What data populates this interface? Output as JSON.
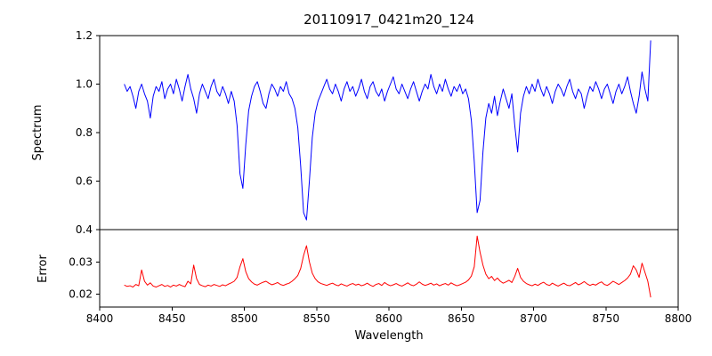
{
  "chart_data": {
    "type": "line",
    "title": "20110917_0421m20_124",
    "xlabel": "Wavelength",
    "xlim": [
      8400,
      8800
    ],
    "xticks": [
      "8400",
      "8450",
      "8500",
      "8550",
      "8600",
      "8650",
      "8700",
      "8750",
      "8800"
    ],
    "x_start": 8417,
    "x_step": 2,
    "n_points": 183,
    "grid": false,
    "legend": "none",
    "panels": [
      {
        "ylabel": "Spectrum",
        "color": "#0000ff",
        "ylim": [
          0.4,
          1.2
        ],
        "yticks": [
          "0.4",
          "0.6",
          "0.8",
          "1.0",
          "1.2"
        ],
        "values": [
          1.0,
          0.97,
          0.99,
          0.95,
          0.9,
          0.97,
          1.0,
          0.96,
          0.93,
          0.86,
          0.95,
          0.99,
          0.97,
          1.01,
          0.94,
          0.98,
          1.0,
          0.96,
          1.02,
          0.98,
          0.93,
          0.99,
          1.04,
          0.98,
          0.94,
          0.88,
          0.96,
          1.0,
          0.97,
          0.94,
          0.99,
          1.02,
          0.97,
          0.95,
          0.99,
          0.96,
          0.92,
          0.97,
          0.93,
          0.83,
          0.63,
          0.57,
          0.75,
          0.89,
          0.95,
          0.99,
          1.01,
          0.97,
          0.92,
          0.9,
          0.96,
          1.0,
          0.98,
          0.95,
          0.99,
          0.97,
          1.01,
          0.96,
          0.94,
          0.9,
          0.82,
          0.66,
          0.47,
          0.44,
          0.6,
          0.78,
          0.88,
          0.93,
          0.96,
          0.99,
          1.02,
          0.98,
          0.96,
          1.0,
          0.97,
          0.93,
          0.98,
          1.01,
          0.97,
          0.99,
          0.95,
          0.98,
          1.02,
          0.97,
          0.94,
          0.99,
          1.01,
          0.97,
          0.95,
          0.98,
          0.93,
          0.97,
          1.0,
          1.03,
          0.98,
          0.96,
          1.0,
          0.97,
          0.94,
          0.98,
          1.01,
          0.97,
          0.93,
          0.97,
          1.0,
          0.98,
          1.04,
          0.99,
          0.96,
          1.0,
          0.97,
          1.02,
          0.98,
          0.95,
          0.99,
          0.97,
          1.0,
          0.96,
          0.98,
          0.94,
          0.85,
          0.68,
          0.47,
          0.52,
          0.72,
          0.86,
          0.92,
          0.88,
          0.95,
          0.87,
          0.93,
          0.98,
          0.94,
          0.9,
          0.96,
          0.83,
          0.72,
          0.88,
          0.95,
          0.99,
          0.96,
          1.0,
          0.97,
          1.02,
          0.98,
          0.95,
          0.99,
          0.96,
          0.92,
          0.97,
          1.0,
          0.98,
          0.95,
          0.99,
          1.02,
          0.97,
          0.94,
          0.98,
          0.96,
          0.9,
          0.95,
          0.99,
          0.97,
          1.01,
          0.98,
          0.94,
          0.98,
          1.0,
          0.96,
          0.92,
          0.97,
          1.0,
          0.96,
          0.99,
          1.03,
          0.97,
          0.92,
          0.88,
          0.95,
          1.05,
          0.98,
          0.93,
          1.18
        ]
      },
      {
        "ylabel": "Error",
        "color": "#ff0000",
        "ylim": [
          0.016,
          0.04
        ],
        "yticks": [
          "0.02",
          "0.03"
        ],
        "values": [
          0.0228,
          0.0224,
          0.0226,
          0.0222,
          0.023,
          0.0226,
          0.0275,
          0.024,
          0.0228,
          0.0235,
          0.0225,
          0.0222,
          0.0226,
          0.023,
          0.0224,
          0.0227,
          0.0222,
          0.0228,
          0.0225,
          0.023,
          0.0226,
          0.0223,
          0.024,
          0.0232,
          0.029,
          0.0248,
          0.023,
          0.0226,
          0.0223,
          0.0228,
          0.0225,
          0.023,
          0.0227,
          0.0224,
          0.0229,
          0.0226,
          0.0231,
          0.0235,
          0.024,
          0.0252,
          0.0285,
          0.031,
          0.027,
          0.0248,
          0.0238,
          0.0231,
          0.0228,
          0.0233,
          0.0237,
          0.024,
          0.0234,
          0.0229,
          0.0232,
          0.0236,
          0.023,
          0.0227,
          0.0231,
          0.0234,
          0.024,
          0.0248,
          0.0258,
          0.028,
          0.032,
          0.035,
          0.03,
          0.0265,
          0.0248,
          0.0238,
          0.0233,
          0.023,
          0.0227,
          0.0231,
          0.0234,
          0.0229,
          0.0226,
          0.0232,
          0.0228,
          0.0225,
          0.023,
          0.0233,
          0.0228,
          0.0231,
          0.0226,
          0.0229,
          0.0234,
          0.0228,
          0.0224,
          0.023,
          0.0233,
          0.0227,
          0.0236,
          0.023,
          0.0226,
          0.0229,
          0.0233,
          0.0228,
          0.0225,
          0.023,
          0.0235,
          0.0229,
          0.0226,
          0.0231,
          0.0238,
          0.0231,
          0.0227,
          0.023,
          0.0234,
          0.0228,
          0.0232,
          0.0226,
          0.023,
          0.0233,
          0.0228,
          0.0235,
          0.023,
          0.0226,
          0.0229,
          0.0233,
          0.0237,
          0.0244,
          0.0256,
          0.0285,
          0.038,
          0.033,
          0.029,
          0.0262,
          0.0248,
          0.0255,
          0.0242,
          0.025,
          0.024,
          0.0234,
          0.0238,
          0.0243,
          0.0236,
          0.0255,
          0.028,
          0.0252,
          0.024,
          0.0233,
          0.0229,
          0.0226,
          0.0231,
          0.0227,
          0.0233,
          0.0237,
          0.023,
          0.0227,
          0.0234,
          0.0229,
          0.0225,
          0.023,
          0.0234,
          0.0228,
          0.0226,
          0.0231,
          0.0236,
          0.0229,
          0.0233,
          0.0239,
          0.0232,
          0.0227,
          0.0231,
          0.0228,
          0.0234,
          0.0238,
          0.023,
          0.0227,
          0.0233,
          0.024,
          0.0235,
          0.023,
          0.0236,
          0.0242,
          0.025,
          0.0262,
          0.0288,
          0.0275,
          0.0252,
          0.0296,
          0.0268,
          0.024,
          0.019
        ]
      }
    ]
  }
}
